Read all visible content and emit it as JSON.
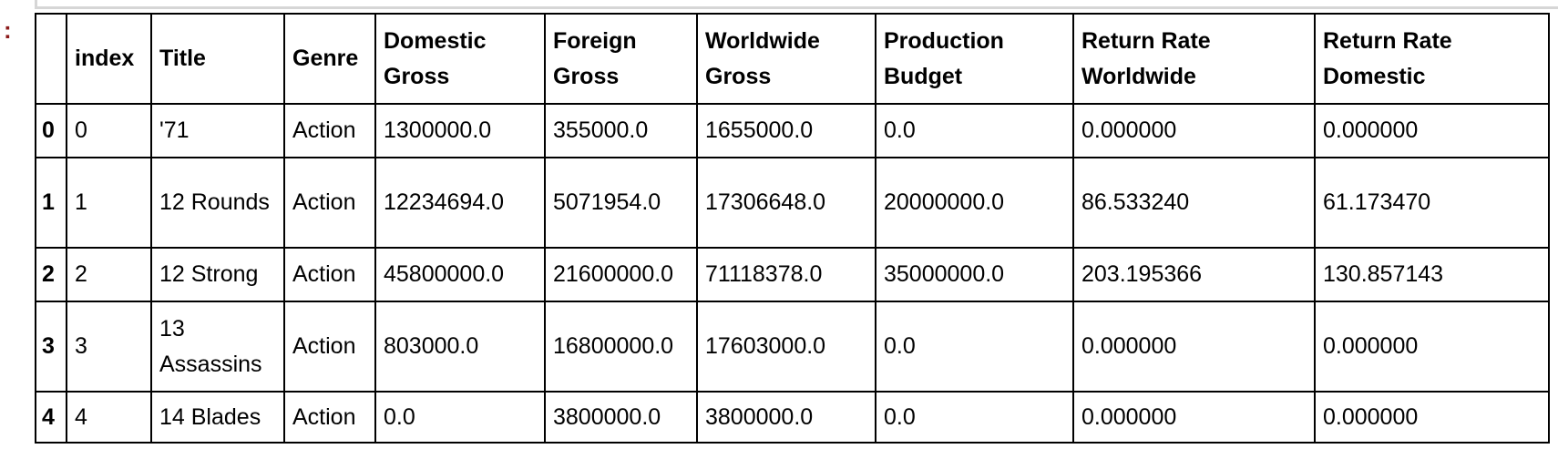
{
  "prompt_marker": ":",
  "table": {
    "columns": [
      "",
      "index",
      "Title",
      "Genre",
      "Domestic Gross",
      "Foreign Gross",
      "Worldwide Gross",
      "Production Budget",
      "Return Rate Worldwide",
      "Return Rate Domestic"
    ],
    "rows": [
      {
        "row_index": "0",
        "index": "0",
        "title": "'71",
        "genre": "Action",
        "domestic_gross": "1300000.0",
        "foreign_gross": "355000.0",
        "worldwide_gross": "1655000.0",
        "production_budget": "0.0",
        "return_rate_worldwide": "0.000000",
        "return_rate_domestic": "0.000000"
      },
      {
        "row_index": "1",
        "index": "1",
        "title": "12 Rounds",
        "genre": "Action",
        "domestic_gross": "12234694.0",
        "foreign_gross": "5071954.0",
        "worldwide_gross": "17306648.0",
        "production_budget": "20000000.0",
        "return_rate_worldwide": "86.533240",
        "return_rate_domestic": "61.173470"
      },
      {
        "row_index": "2",
        "index": "2",
        "title": "12 Strong",
        "genre": "Action",
        "domestic_gross": "45800000.0",
        "foreign_gross": "21600000.0",
        "worldwide_gross": "71118378.0",
        "production_budget": "35000000.0",
        "return_rate_worldwide": "203.195366",
        "return_rate_domestic": "130.857143"
      },
      {
        "row_index": "3",
        "index": "3",
        "title": "13 Assassins",
        "genre": "Action",
        "domestic_gross": "803000.0",
        "foreign_gross": "16800000.0",
        "worldwide_gross": "17603000.0",
        "production_budget": "0.0",
        "return_rate_worldwide": "0.000000",
        "return_rate_domestic": "0.000000"
      },
      {
        "row_index": "4",
        "index": "4",
        "title": "14 Blades",
        "genre": "Action",
        "domestic_gross": "0.0",
        "foreign_gross": "3800000.0",
        "worldwide_gross": "3800000.0",
        "production_budget": "0.0",
        "return_rate_worldwide": "0.000000",
        "return_rate_domestic": "0.000000"
      }
    ]
  }
}
